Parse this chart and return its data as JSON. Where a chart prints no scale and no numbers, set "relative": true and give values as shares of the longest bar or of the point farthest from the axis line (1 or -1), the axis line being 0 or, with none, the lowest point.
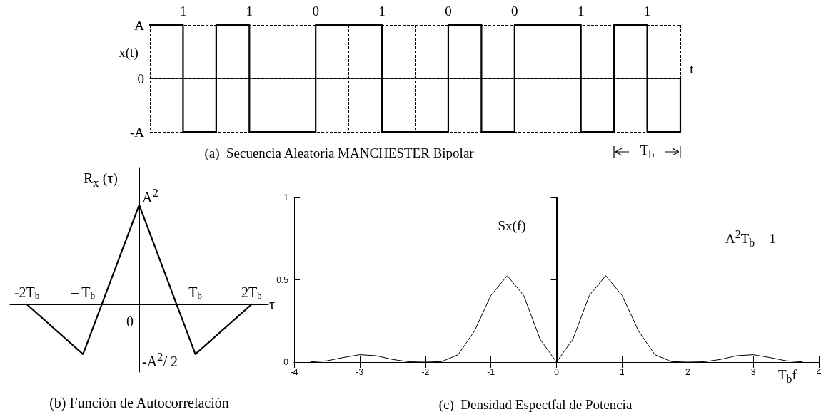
{
  "chart_data": [
    {
      "type": "step",
      "title": "(a)  Secuencia Aleatoria MANCHESTER Bipolar",
      "xlabel": "t",
      "ylabel": "x(t)",
      "categories": [
        null,
        null,
        null,
        null,
        null,
        null,
        null,
        null,
        null,
        null,
        null,
        null,
        null,
        null,
        null,
        null,
        null
      ],
      "values": [
        1,
        -1,
        1,
        -1,
        -1,
        1,
        1,
        -1,
        -1,
        1,
        -1,
        1,
        1,
        -1,
        1,
        -1,
        0
      ],
      "color": "#000000",
      "relative": true,
      "grid": true,
      "tick_labels": false,
      "annotations": [
        "1",
        "1",
        "0",
        "1",
        "0",
        "0",
        "1",
        "1",
        "T$_{b}$",
        "A",
        "0",
        "-A"
      ]
    },
    {
      "type": "line",
      "title": "(b) Función de Autocorrelación",
      "xlabel": "τ",
      "ylabel": "R$_{x}$ (τ)",
      "x": [
        -2,
        -1,
        0,
        1,
        2
      ],
      "values": [
        0,
        -0.5,
        1,
        -0.5,
        0
      ],
      "color": "#000000",
      "xlim": [
        -2.3,
        2.3
      ],
      "xticks": [
        {
          "value": -2,
          "label": "-2T$_{b}$"
        },
        {
          "value": -1,
          "label": "– T$_{b}$"
        },
        {
          "value": 1,
          "label": "T$_{b}$"
        },
        {
          "value": 2,
          "label": "2T$_{b}$"
        }
      ],
      "relative": true,
      "tick_labels": "x",
      "annotations": [
        "A$^{2}$",
        "0",
        "-A$^{2}$/ 2"
      ]
    },
    {
      "type": "line",
      "title": "(c)  Densidad Espectfal de Potencia",
      "xlabel": "T$_{b}$f",
      "ylabel": "Sx(f)",
      "x": [
        -3.75,
        -3.5,
        -3.25,
        -3,
        -2.75,
        -2.5,
        -2.25,
        -2,
        -1.75,
        -1.5,
        -1.25,
        -1,
        -0.75,
        -0.5,
        -0.25,
        0,
        0.25,
        0.5,
        0.75,
        1,
        1.25,
        1.5,
        1.75,
        2,
        2.25,
        2.5,
        2.75,
        3,
        3.25,
        3.5,
        3.75
      ],
      "values": [
        0.001,
        0.008,
        0.028,
        0.045,
        0.039,
        0.016,
        0.002,
        0,
        0.003,
        0.045,
        0.189,
        0.405,
        0.525,
        0.405,
        0.139,
        0,
        0.139,
        0.405,
        0.525,
        0.405,
        0.189,
        0.045,
        0.003,
        0,
        0.002,
        0.016,
        0.039,
        0.045,
        0.028,
        0.008,
        0.001
      ],
      "color": "#000000",
      "xlim": [
        -4,
        4
      ],
      "xticks": [
        -4,
        -3,
        -2,
        -1,
        0,
        1,
        2,
        3,
        4
      ],
      "ylim": [
        0,
        1
      ],
      "yticks": [
        0,
        0.5,
        1
      ],
      "ref_lines": [
        {
          "axis": "x",
          "value": 0
        }
      ],
      "annotations": [
        "A$^{2}$T$_{b}$ = 1"
      ]
    }
  ]
}
